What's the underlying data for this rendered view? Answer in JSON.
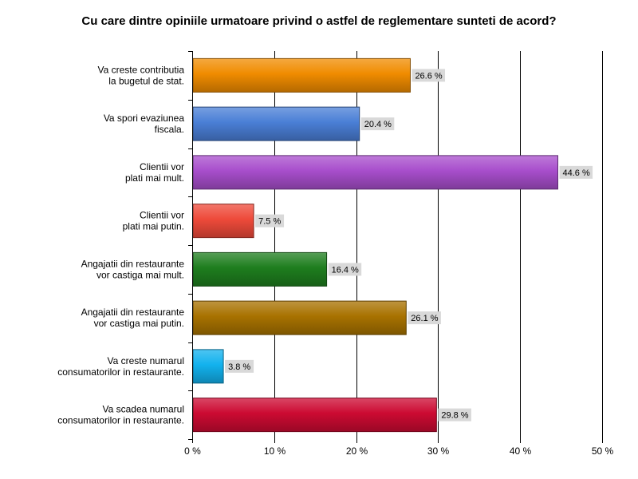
{
  "chart_data": {
    "type": "bar",
    "orientation": "horizontal",
    "title": "Cu care dintre opiniile urmatoare privind o astfel de reglementare sunteti de acord?",
    "categories": [
      [
        "Va creste contributia",
        "la bugetul de stat."
      ],
      [
        "Va spori evaziunea",
        "fiscala."
      ],
      [
        "Clientii vor",
        "plati mai mult."
      ],
      [
        "Clientii vor",
        "plati mai putin."
      ],
      [
        "Angajatii din restaurante",
        "vor castiga mai mult."
      ],
      [
        "Angajatii din restaurante",
        "vor castiga mai putin."
      ],
      [
        "Va creste numarul",
        "consumatorilor in restaurante."
      ],
      [
        "Va scadea numarul",
        "consumatorilor in restaurante."
      ]
    ],
    "values": [
      26.6,
      20.4,
      44.6,
      7.5,
      16.4,
      26.1,
      3.8,
      29.8
    ],
    "data_labels": [
      "26.6 %",
      "20.4 %",
      "44.6 %",
      "7.5 %",
      "16.4 %",
      "26.1 %",
      "3.8 %",
      "29.8 %"
    ],
    "colors": [
      "#f08c00",
      "#4a7fd6",
      "#a84ecc",
      "#ee4a3a",
      "#1e7e1e",
      "#a87200",
      "#12b2ee",
      "#cc0a32"
    ],
    "xlim": [
      0,
      50
    ],
    "xticks": [
      0,
      10,
      20,
      30,
      40,
      50
    ],
    "xtick_labels": [
      "0 %",
      "10 %",
      "20 %",
      "30 %",
      "40 %",
      "50 %"
    ],
    "grid": "vertical",
    "legend": "none"
  }
}
